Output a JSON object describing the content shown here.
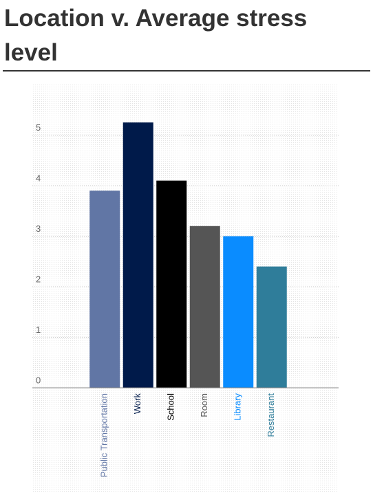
{
  "chart_data": {
    "type": "bar",
    "title": "Location v. Average stress level",
    "categories": [
      "Public Transportation",
      "Work",
      "School",
      "Room",
      "Library",
      "Restaurant"
    ],
    "values": [
      3.9,
      5.25,
      4.1,
      3.2,
      3.0,
      2.4
    ],
    "colors": [
      "#6176a5",
      "#001a4a",
      "#000000",
      "#555555",
      "#0a8cff",
      "#2f7d9a"
    ],
    "ylim": [
      0,
      6
    ],
    "yticks": [
      0,
      1,
      2,
      3,
      4,
      5
    ],
    "grid": true
  }
}
